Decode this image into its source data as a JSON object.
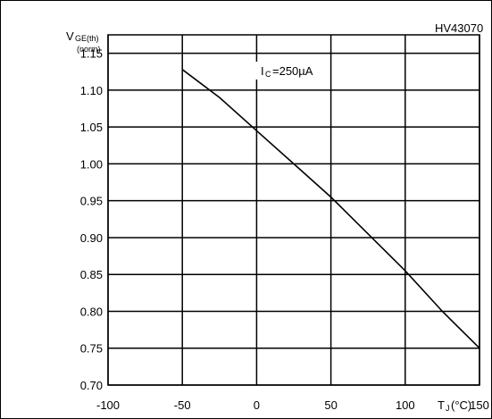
{
  "chart_data": {
    "type": "line",
    "figure_code": "HV43070",
    "ylabel": {
      "main": "V",
      "sub": "GE(th)",
      "note": "(norm)"
    },
    "xlabel": {
      "main": "T",
      "sub": "J",
      "unit": "(°C)"
    },
    "annotation": {
      "main": "I",
      "sub": "C",
      "value": "=250µA"
    },
    "xlim": [
      -100,
      150
    ],
    "ylim": [
      0.7,
      1.175
    ],
    "x_ticks": [
      "-100",
      "-50",
      "0",
      "50",
      "100",
      "150"
    ],
    "y_ticks": [
      "0.70",
      "0.75",
      "0.80",
      "0.85",
      "0.90",
      "0.95",
      "1.00",
      "1.05",
      "1.10",
      "1.15"
    ],
    "grid": true,
    "series": [
      {
        "x": [
          -50,
          -25,
          0,
          25,
          50,
          75,
          100,
          125,
          150
        ],
        "y": [
          1.128,
          1.09,
          1.045,
          1.0,
          0.955,
          0.905,
          0.855,
          0.8,
          0.75
        ]
      }
    ]
  }
}
